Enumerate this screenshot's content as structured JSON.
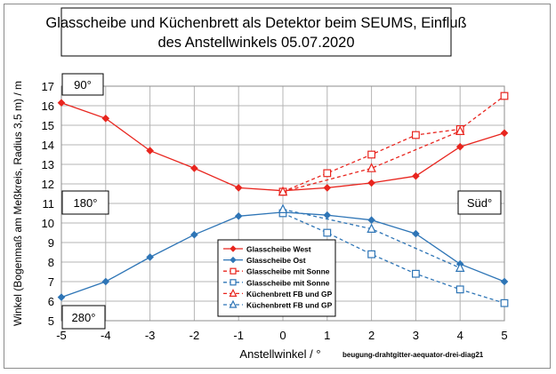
{
  "chart_data": {
    "type": "line",
    "title_lines": [
      "Glasscheibe und Küchenbrett als Detektor beim SEUMS, Einfluß",
      "des Anstellwinkels 05.07.2020"
    ],
    "xlabel": "Anstellwinkel / °",
    "ylabel": "Winkel (Bogenmaß am Meßkreis, Radius 3,5 m) / m",
    "xlim": [
      -5,
      5
    ],
    "ylim": [
      5,
      17
    ],
    "xticks": [
      -5,
      -4,
      -3,
      -2,
      -1,
      0,
      1,
      2,
      3,
      4,
      5
    ],
    "yticks": [
      5,
      6,
      7,
      8,
      9,
      10,
      11,
      12,
      13,
      14,
      15,
      16,
      17
    ],
    "grid": true,
    "legend_position": "lower-center",
    "annotations": [
      "90°",
      "180°",
      "280°",
      "Süd°"
    ],
    "source_label": "beugung-drahtgitter-aequator-drei-diag21",
    "series": [
      {
        "name": "Glasscheibe West",
        "color": "#e8251e",
        "marker": "diamond",
        "filled": true,
        "dashed": false,
        "x": [
          -5,
          -4,
          -3,
          -2,
          -1,
          0,
          1,
          2,
          3,
          4,
          5
        ],
        "y": [
          16.15,
          15.35,
          13.7,
          12.8,
          11.8,
          11.65,
          11.8,
          12.05,
          12.4,
          13.9,
          14.6
        ]
      },
      {
        "name": "Glasscheibe Ost",
        "color": "#2e75b6",
        "marker": "diamond",
        "filled": true,
        "dashed": false,
        "x": [
          -5,
          -4,
          -3,
          -2,
          -1,
          0,
          1,
          2,
          3,
          4,
          5
        ],
        "y": [
          6.2,
          7.0,
          8.25,
          9.4,
          10.35,
          10.55,
          10.4,
          10.15,
          9.45,
          7.9,
          7.0
        ]
      },
      {
        "name": "Glasscheibe mit Sonne",
        "color": "#e8251e",
        "marker": "square",
        "filled": false,
        "dashed": true,
        "x": [
          0,
          1,
          2,
          3,
          4,
          5
        ],
        "y": [
          11.6,
          12.55,
          13.5,
          14.5,
          14.8,
          16.5
        ]
      },
      {
        "name": "Glasscheibe mit Sonne",
        "color": "#2e75b6",
        "marker": "square",
        "filled": false,
        "dashed": true,
        "x": [
          0,
          1,
          2,
          3,
          4,
          5
        ],
        "y": [
          10.5,
          9.5,
          8.4,
          7.4,
          6.6,
          5.9
        ]
      },
      {
        "name": "Küchenbrett FB und GP",
        "color": "#e8251e",
        "marker": "triangle",
        "filled": false,
        "dashed": true,
        "x": [
          0,
          2,
          4
        ],
        "y": [
          11.6,
          12.8,
          14.7
        ]
      },
      {
        "name": "Küchenbrett FB und GP",
        "color": "#2e75b6",
        "marker": "triangle",
        "filled": false,
        "dashed": true,
        "x": [
          0,
          2,
          4
        ],
        "y": [
          10.7,
          9.7,
          7.7
        ]
      }
    ]
  }
}
